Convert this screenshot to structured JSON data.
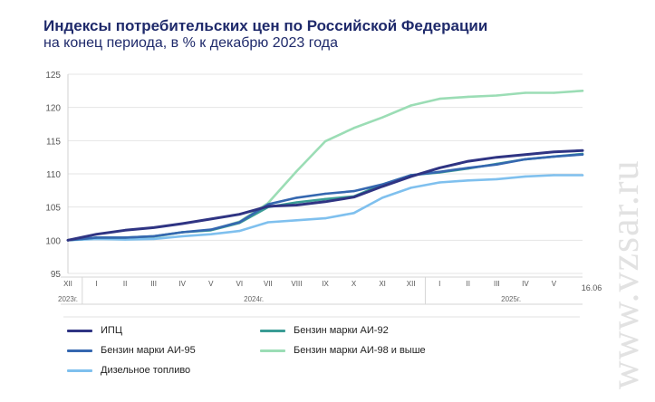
{
  "title": "Индексы потребительских цен по Российской Федерации",
  "subtitle": "на конец периода, в % к декабрю 2023 года",
  "watermark": "www.vzsar.ru",
  "chart_data": {
    "type": "line",
    "title": "Индексы потребительских цен по Российской Федерации",
    "subtitle": "на конец периода, в % к декабрю 2023 года",
    "xlabel": "",
    "ylabel": "",
    "ylim": [
      95,
      125
    ],
    "yticks": [
      95,
      100,
      105,
      110,
      115,
      120,
      125
    ],
    "grid": true,
    "legend_position": "bottom",
    "categories": [
      "XII",
      "I",
      "II",
      "III",
      "IV",
      "V",
      "VI",
      "VII",
      "VIII",
      "IX",
      "X",
      "XI",
      "XII",
      "I",
      "II",
      "III",
      "IV",
      "V",
      "16.06"
    ],
    "year_labels": [
      {
        "label": "2023г.",
        "category_index": 0
      },
      {
        "label": "2024г.",
        "category_index": 6.5
      },
      {
        "label": "2025г.",
        "category_index": 15.5
      }
    ],
    "series": [
      {
        "name": "ИПЦ",
        "color": "#2f3483",
        "values": [
          100,
          100.9,
          101.5,
          101.9,
          102.5,
          103.2,
          103.9,
          105.1,
          105.3,
          105.8,
          106.5,
          108.1,
          109.6,
          110.9,
          111.9,
          112.5,
          112.9,
          113.3,
          113.5
        ]
      },
      {
        "name": "Бензин марки АИ-92",
        "color": "#3a9c95",
        "values": [
          100,
          100.4,
          100.4,
          100.6,
          101.2,
          101.5,
          102.6,
          105.0,
          105.7,
          106.2,
          106.6,
          108.4,
          109.8,
          110.2,
          110.8,
          111.5,
          112.2,
          112.6,
          113.0
        ]
      },
      {
        "name": "Бензин марки АИ-95",
        "color": "#3567b0",
        "values": [
          100,
          100.4,
          100.4,
          100.6,
          101.2,
          101.6,
          102.7,
          105.4,
          106.4,
          107.0,
          107.4,
          108.4,
          109.8,
          110.3,
          110.9,
          111.4,
          112.2,
          112.6,
          112.9
        ]
      },
      {
        "name": "Бензин марки АИ-98 и выше",
        "color": "#9bddb5",
        "values": [
          100,
          100.3,
          100.3,
          100.5,
          101.2,
          101.5,
          102.8,
          105.6,
          110.4,
          114.9,
          116.9,
          118.5,
          120.3,
          121.3,
          121.6,
          121.8,
          122.2,
          122.2,
          122.5
        ]
      },
      {
        "name": "Дизельное топливо",
        "color": "#7fc0ee",
        "values": [
          100,
          100.2,
          100.1,
          100.2,
          100.6,
          100.9,
          101.4,
          102.7,
          103.0,
          103.3,
          104.1,
          106.4,
          107.9,
          108.7,
          109.0,
          109.2,
          109.6,
          109.8,
          109.8
        ]
      }
    ]
  },
  "legend": [
    {
      "name": "ИПЦ",
      "color": "#2f3483"
    },
    {
      "name": "Бензин марки АИ-92",
      "color": "#3a9c95"
    },
    {
      "name": "Бензин марки АИ-95",
      "color": "#3567b0"
    },
    {
      "name": "Бензин марки АИ-98 и выше",
      "color": "#9bddb5"
    },
    {
      "name": "Дизельное топливо",
      "color": "#7fc0ee"
    }
  ]
}
